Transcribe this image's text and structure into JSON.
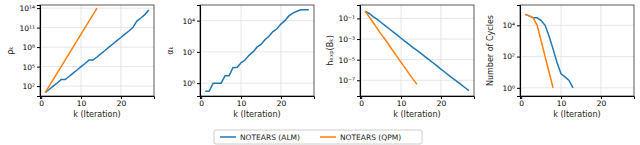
{
  "chart_data": [
    {
      "type": "line",
      "ylabel": "ρₖ",
      "xlabel": "k (Iteration)",
      "log": "y",
      "grid": true,
      "legend": "bottom",
      "xlim": [
        -0.3,
        28.3
      ],
      "xticks": [
        0,
        10,
        20
      ],
      "ylim": [
        3,
        300000000000000
      ],
      "yticks": [
        {
          "value": 100,
          "label": "10²"
        },
        {
          "value": 100000,
          "label": "10⁵"
        },
        {
          "value": 100000000,
          "label": "10⁸"
        },
        {
          "value": 100000000000,
          "label": "10¹¹"
        },
        {
          "value": 100000000000000,
          "label": "10¹⁴"
        }
      ],
      "series": [
        {
          "name": "NOTEARS (ALM)",
          "color": "#1f77b4",
          "x": [
            1,
            2,
            3,
            4,
            5,
            6,
            7,
            8,
            9,
            10,
            11,
            12,
            13,
            14,
            15,
            16,
            17,
            18,
            19,
            20,
            21,
            22,
            23,
            24,
            25,
            26,
            27
          ],
          "values": [
            10,
            30,
            100,
            300,
            1000,
            1000,
            3000,
            10000,
            30000,
            100000,
            300000,
            1000000,
            1000000,
            3000000,
            10000000,
            30000000,
            100000000,
            300000000,
            1000000000,
            3000000000,
            10000000000,
            30000000000,
            100000000000,
            1000000000000,
            3000000000000,
            10000000000000,
            50000000000000
          ]
        },
        {
          "name": "NOTEARS (QPM)",
          "color": "#ff7f0e",
          "x": [
            1,
            2,
            3,
            4,
            5,
            6,
            7,
            8,
            9,
            10,
            11,
            12,
            13,
            14
          ],
          "values": [
            10,
            100,
            1000,
            10000,
            100000,
            1000000,
            10000000,
            100000000,
            1000000000,
            10000000000,
            100000000000,
            1000000000000,
            10000000000000,
            100000000000000
          ]
        }
      ]
    },
    {
      "type": "line",
      "ylabel": "αₖ",
      "xlabel": "k (Iteration)",
      "log": "y",
      "grid": true,
      "xlim": [
        -0.3,
        28.3
      ],
      "xticks": [
        0,
        10,
        20
      ],
      "ylim": [
        0.15,
        100000
      ],
      "yticks": [
        {
          "value": 1,
          "label": "10⁰"
        },
        {
          "value": 100,
          "label": "10²"
        },
        {
          "value": 10000,
          "label": "10⁴"
        }
      ],
      "series": [
        {
          "name": "NOTEARS (ALM)",
          "color": "#1f77b4",
          "x": [
            1,
            2,
            3,
            4,
            5,
            6,
            7,
            8,
            9,
            10,
            11,
            12,
            13,
            14,
            15,
            16,
            17,
            18,
            19,
            20,
            21,
            22,
            23,
            24,
            25,
            26,
            27
          ],
          "values": [
            0.3,
            0.3,
            1,
            1,
            1,
            3,
            3,
            10,
            10,
            20,
            30,
            60,
            100,
            200,
            300,
            600,
            1000,
            2000,
            3000,
            6000,
            10000,
            20000,
            30000,
            40000,
            50000,
            50000,
            50000
          ]
        }
      ]
    },
    {
      "type": "line",
      "ylabel": "hₑₓₚ(Bₖ)",
      "xlabel": "k (Iteration)",
      "log": "y",
      "grid": true,
      "xlim": [
        -0.3,
        28.3
      ],
      "xticks": [
        0,
        10,
        20
      ],
      "ylim": [
        3e-09,
        2
      ],
      "yticks": [
        {
          "value": 0.1,
          "label": "10⁻¹"
        },
        {
          "value": 0.001,
          "label": "10⁻³"
        },
        {
          "value": 1e-05,
          "label": "10⁻⁵"
        },
        {
          "value": 1e-07,
          "label": "10⁻⁷"
        }
      ],
      "series": [
        {
          "name": "NOTEARS (ALM)",
          "color": "#1f77b4",
          "x": [
            1,
            2,
            3,
            4,
            5,
            6,
            7,
            8,
            9,
            10,
            11,
            12,
            13,
            14,
            15,
            16,
            17,
            18,
            19,
            20,
            21,
            22,
            23,
            24,
            25,
            26,
            27
          ],
          "values": [
            0.5,
            0.3,
            0.15,
            0.08,
            0.04,
            0.02,
            0.01,
            0.005,
            0.0025,
            0.0012,
            0.0006,
            0.0003,
            0.00015,
            8e-05,
            4e-05,
            2e-05,
            1e-05,
            5e-06,
            2.5e-06,
            1.2e-06,
            6e-07,
            3e-07,
            1.5e-07,
            8e-08,
            4e-08,
            2e-08,
            1e-08
          ]
        },
        {
          "name": "NOTEARS (QPM)",
          "color": "#ff7f0e",
          "x": [
            1,
            2,
            3,
            4,
            5,
            6,
            7,
            8,
            9,
            10,
            11,
            12,
            13,
            14
          ],
          "values": [
            0.5,
            0.14,
            0.04,
            0.011,
            0.003,
            0.0009,
            0.00025,
            7e-05,
            2e-05,
            5.5e-06,
            1.6e-06,
            4.5e-07,
            1.3e-07,
            4e-08
          ]
        }
      ]
    },
    {
      "type": "line",
      "ylabel": "Number of Cycles",
      "xlabel": "k (Iteration)",
      "log": "y",
      "grid": true,
      "xlim": [
        -0.3,
        28.3
      ],
      "xticks": [
        0,
        10,
        20
      ],
      "ylim": [
        0.3,
        200000
      ],
      "yticks": [
        {
          "value": 1,
          "label": "10⁰"
        },
        {
          "value": 100,
          "label": "10²"
        },
        {
          "value": 10000,
          "label": "10⁴"
        }
      ],
      "series": [
        {
          "name": "NOTEARS (ALM)",
          "color": "#1f77b4",
          "x": [
            1,
            2,
            3,
            4,
            5,
            6,
            7,
            8,
            9,
            10,
            11,
            12,
            13
          ],
          "values": [
            50000,
            40000,
            30000,
            30000,
            20000,
            10000,
            2000,
            300,
            40,
            8,
            5,
            3,
            1
          ]
        },
        {
          "name": "NOTEARS (QPM)",
          "color": "#ff7f0e",
          "x": [
            1,
            2,
            3,
            4,
            5,
            6,
            7,
            8
          ],
          "values": [
            50000,
            40000,
            30000,
            10000,
            1000,
            100,
            10,
            1
          ]
        }
      ]
    }
  ]
}
